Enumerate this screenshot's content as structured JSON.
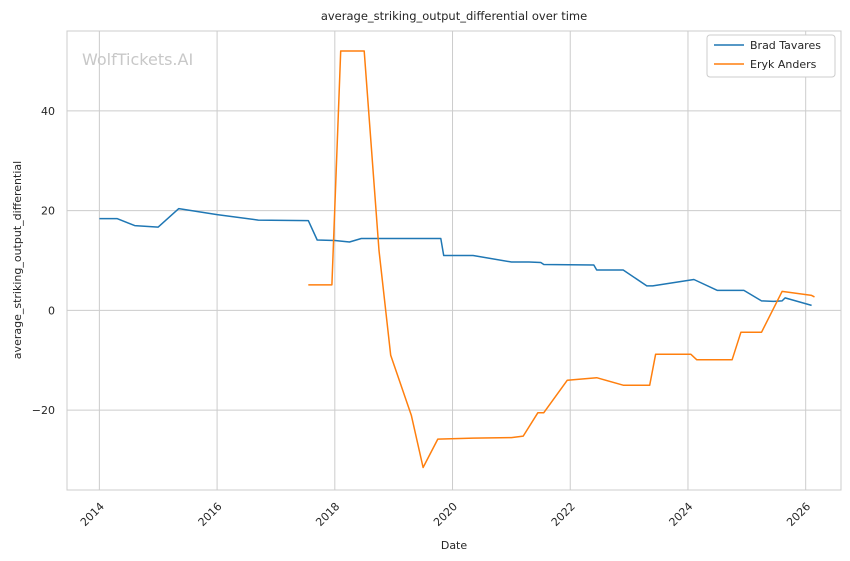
{
  "chart_data": {
    "type": "line",
    "title": "average_striking_output_differential over time",
    "xlabel": "Date",
    "ylabel": "average_striking_output_differential",
    "watermark": "WolfTickets.AI",
    "xlim": [
      2013.45,
      2026.6
    ],
    "ylim": [
      -36,
      56
    ],
    "x_ticks": [
      2014,
      2016,
      2018,
      2020,
      2022,
      2024,
      2026
    ],
    "y_ticks": [
      -20,
      0,
      20,
      40
    ],
    "y_tick_labels": [
      "−20",
      "0",
      "20",
      "40"
    ],
    "grid": true,
    "legend": "top-right",
    "series": [
      {
        "name": "Brad Tavares",
        "color": "#1f77b4",
        "x": [
          2014.0,
          2014.3,
          2014.6,
          2015.0,
          2015.35,
          2016.0,
          2016.7,
          2017.55,
          2017.7,
          2018.0,
          2018.25,
          2018.45,
          2019.8,
          2019.85,
          2020.35,
          2021.0,
          2021.3,
          2021.5,
          2021.55,
          2022.4,
          2022.45,
          2022.9,
          2023.3,
          2023.4,
          2024.1,
          2024.5,
          2024.95,
          2025.25,
          2025.45,
          2025.6,
          2025.65,
          2026.1
        ],
        "y": [
          18.4,
          18.4,
          17.0,
          16.7,
          20.4,
          19.2,
          18.1,
          18.0,
          14.1,
          14.0,
          13.7,
          14.4,
          14.4,
          11.0,
          11.0,
          9.7,
          9.7,
          9.6,
          9.2,
          9.1,
          8.1,
          8.1,
          4.9,
          4.9,
          6.2,
          4.0,
          4.0,
          1.9,
          1.8,
          1.9,
          2.5,
          1.0
        ]
      },
      {
        "name": "Eryk Anders",
        "color": "#ff7f0e",
        "x": [
          2017.55,
          2017.95,
          2018.1,
          2018.5,
          2018.75,
          2018.95,
          2019.3,
          2019.5,
          2019.75,
          2020.35,
          2021.0,
          2021.2,
          2021.45,
          2021.55,
          2021.95,
          2022.45,
          2022.9,
          2023.35,
          2023.45,
          2024.05,
          2024.15,
          2024.75,
          2024.9,
          2025.25,
          2025.6,
          2026.1,
          2026.15
        ],
        "y": [
          5.1,
          5.1,
          52.0,
          52.0,
          12.0,
          -9.0,
          -21.0,
          -31.5,
          -25.8,
          -25.6,
          -25.5,
          -25.2,
          -20.5,
          -20.5,
          -14.0,
          -13.5,
          -15.0,
          -15.0,
          -8.8,
          -8.8,
          -9.9,
          -9.9,
          -4.4,
          -4.4,
          3.8,
          3.0,
          2.7
        ]
      }
    ]
  }
}
